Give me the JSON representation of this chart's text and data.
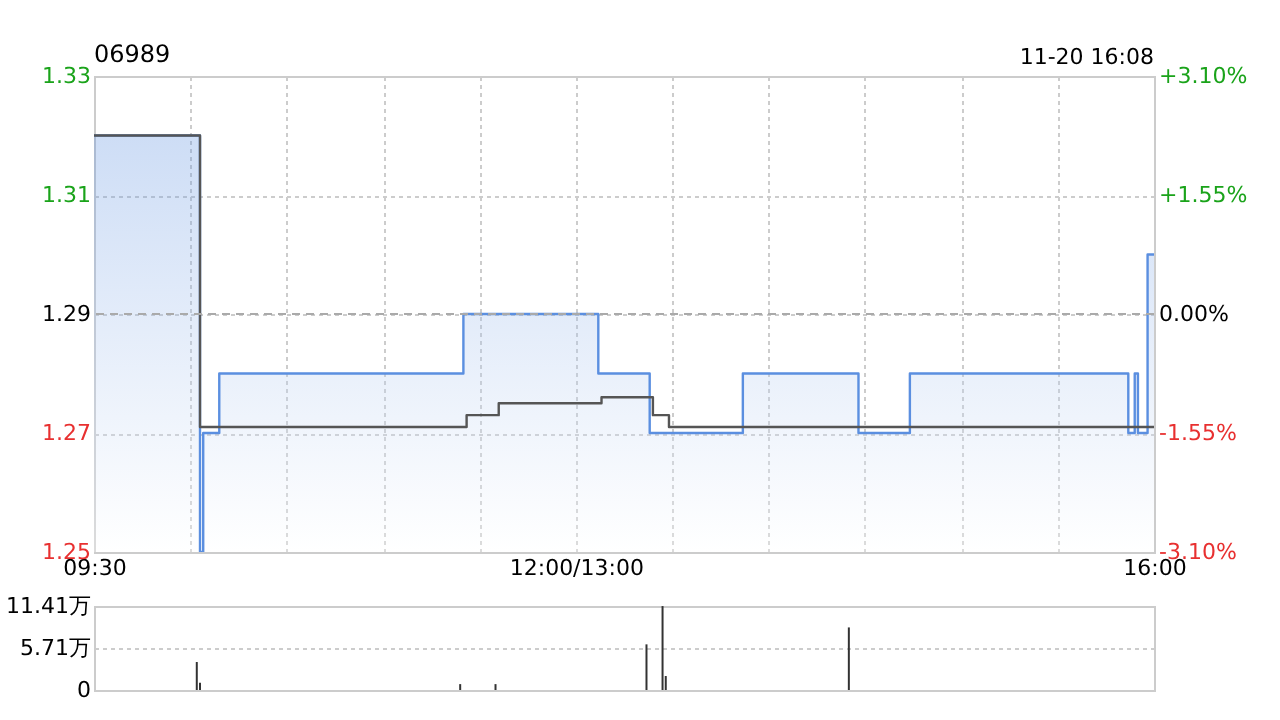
{
  "chart_data": [
    {
      "type": "area",
      "title": "06989",
      "annotations": [
        "11-20 16:08"
      ],
      "categories": [
        "09:30",
        null,
        null,
        null,
        null,
        null,
        null,
        null,
        null,
        null,
        null,
        null,
        null,
        null,
        null,
        null,
        null,
        null,
        null,
        null,
        null,
        null,
        null,
        null,
        null,
        null,
        null,
        null,
        null,
        null,
        null,
        null,
        null,
        null,
        null,
        null,
        null,
        null,
        null,
        null,
        null,
        null,
        null,
        null,
        null,
        null,
        null,
        null,
        null,
        null,
        null,
        null,
        null,
        null,
        null,
        null,
        null,
        null,
        null,
        null,
        null,
        null,
        null,
        null,
        null,
        null,
        null,
        null,
        null,
        null,
        null,
        null,
        null,
        null,
        null,
        null,
        null,
        null,
        null,
        null,
        null,
        null,
        null,
        null,
        null,
        null,
        null,
        null,
        null,
        null,
        null,
        null,
        null,
        null,
        null,
        null,
        null,
        null,
        null,
        null,
        null,
        null,
        null,
        null,
        null,
        null,
        null,
        null,
        null,
        null,
        null,
        null,
        null,
        null,
        null,
        null,
        null,
        null,
        null,
        null,
        null,
        null,
        null,
        null,
        null,
        null,
        null,
        null,
        null,
        null,
        null,
        null,
        null,
        null,
        null,
        null,
        null,
        null,
        null,
        null,
        null,
        null,
        null,
        null,
        null,
        null,
        null,
        null,
        null,
        null,
        "12:00/13:00",
        null,
        null,
        null,
        null,
        null,
        null,
        null,
        null,
        null,
        null,
        null,
        null,
        null,
        null,
        null,
        null,
        null,
        null,
        null,
        null,
        null,
        null,
        null,
        null,
        null,
        null,
        null,
        null,
        null,
        null,
        null,
        null,
        null,
        null,
        null,
        null,
        null,
        null,
        null,
        null,
        null,
        null,
        null,
        null,
        null,
        null,
        null,
        null,
        null,
        null,
        null,
        null,
        null,
        null,
        null,
        null,
        null,
        null,
        null,
        null,
        null,
        null,
        null,
        null,
        null,
        null,
        null,
        null,
        null,
        null,
        null,
        null,
        null,
        null,
        null,
        null,
        null,
        null,
        null,
        null,
        null,
        null,
        null,
        null,
        null,
        null,
        null,
        null,
        null,
        null,
        null,
        null,
        null,
        null,
        null,
        null,
        null,
        null,
        null,
        null,
        null,
        null,
        null,
        null,
        null,
        null,
        null,
        null,
        null,
        null,
        null,
        null,
        null,
        null,
        null,
        null,
        null,
        null,
        null,
        null,
        null,
        null,
        null,
        null,
        null,
        null,
        null,
        null,
        null,
        null,
        null,
        null,
        null,
        null,
        null,
        null,
        null,
        null,
        null,
        null,
        null,
        null,
        null,
        null,
        null,
        null,
        null,
        null,
        null,
        null,
        null,
        null,
        null,
        null,
        null,
        null,
        null,
        null,
        null,
        null,
        null,
        null,
        null,
        null,
        null,
        null,
        null,
        null,
        null,
        null,
        null,
        null,
        null,
        null,
        null,
        null,
        null,
        null,
        null,
        "16:00"
      ],
      "ylim": [
        1.25,
        1.33
      ],
      "yticks": [
        1.25,
        1.27,
        1.29,
        1.31,
        1.33
      ],
      "y2lim": [
        -3.1,
        3.1
      ],
      "y2ticks": [
        {
          "value": -3.1,
          "label": "-3.10%"
        },
        {
          "value": -1.55,
          "label": "-1.55%"
        },
        {
          "value": 0,
          "label": "0.00%"
        },
        {
          "value": 1.55,
          "label": "+1.55%"
        },
        {
          "value": 3.1,
          "label": "+3.10%"
        }
      ],
      "ref_lines": [
        {
          "axis": "y",
          "value": 1.29,
          "label": null,
          "color": "#aaaaaa",
          "line_style": "dashed"
        }
      ],
      "grid": true,
      "series": [
        {
          "type": "area",
          "color": "#5b8fe0",
          "values": [
            1.32,
            1.32,
            1.32,
            1.32,
            1.32,
            1.32,
            1.32,
            1.32,
            1.32,
            1.32,
            1.32,
            1.32,
            1.32,
            1.32,
            1.32,
            1.32,
            1.32,
            1.32,
            1.32,
            1.32,
            1.32,
            1.32,
            1.32,
            1.32,
            1.32,
            1.32,
            1.32,
            1.32,
            1.32,
            1.32,
            1.32,
            1.32,
            1.32,
            1.25,
            1.27,
            1.27,
            1.27,
            1.27,
            1.27,
            1.28,
            1.28,
            1.28,
            1.28,
            1.28,
            1.28,
            1.28,
            1.28,
            1.28,
            1.28,
            1.28,
            1.28,
            1.28,
            1.28,
            1.28,
            1.28,
            1.28,
            1.28,
            1.28,
            1.28,
            1.28,
            1.28,
            1.28,
            1.28,
            1.28,
            1.28,
            1.28,
            1.28,
            1.28,
            1.28,
            1.28,
            1.28,
            1.28,
            1.28,
            1.28,
            1.28,
            1.28,
            1.28,
            1.28,
            1.28,
            1.28,
            1.28,
            1.28,
            1.28,
            1.28,
            1.28,
            1.28,
            1.28,
            1.28,
            1.28,
            1.28,
            1.28,
            1.28,
            1.28,
            1.28,
            1.28,
            1.28,
            1.28,
            1.28,
            1.28,
            1.28,
            1.28,
            1.28,
            1.28,
            1.28,
            1.28,
            1.28,
            1.28,
            1.28,
            1.28,
            1.28,
            1.28,
            1.28,
            1.28,
            1.28,
            1.28,
            1.29,
            1.29,
            1.29,
            1.29,
            1.29,
            1.29,
            1.29,
            1.29,
            1.29,
            1.29,
            1.29,
            1.29,
            1.29,
            1.29,
            1.29,
            1.29,
            1.29,
            1.29,
            1.29,
            1.29,
            1.29,
            1.29,
            1.29,
            1.29,
            1.29,
            1.29,
            1.29,
            1.29,
            1.29,
            1.29,
            1.29,
            1.29,
            1.29,
            1.29,
            1.29,
            1.29,
            1.29,
            1.29,
            1.29,
            1.29,
            1.29,
            1.29,
            1.28,
            1.28,
            1.28,
            1.28,
            1.28,
            1.28,
            1.28,
            1.28,
            1.28,
            1.28,
            1.28,
            1.28,
            1.28,
            1.28,
            1.28,
            1.28,
            1.27,
            1.27,
            1.27,
            1.27,
            1.27,
            1.27,
            1.27,
            1.27,
            1.27,
            1.27,
            1.27,
            1.27,
            1.27,
            1.27,
            1.27,
            1.27,
            1.27,
            1.27,
            1.27,
            1.27,
            1.27,
            1.27,
            1.27,
            1.27,
            1.27,
            1.27,
            1.27,
            1.27,
            1.27,
            1.28,
            1.28,
            1.28,
            1.28,
            1.28,
            1.28,
            1.28,
            1.28,
            1.28,
            1.28,
            1.28,
            1.28,
            1.28,
            1.28,
            1.28,
            1.28,
            1.28,
            1.28,
            1.28,
            1.28,
            1.28,
            1.28,
            1.28,
            1.28,
            1.28,
            1.28,
            1.28,
            1.28,
            1.28,
            1.28,
            1.28,
            1.28,
            1.28,
            1.28,
            1.28,
            1.28,
            1.27,
            1.27,
            1.27,
            1.27,
            1.27,
            1.27,
            1.27,
            1.27,
            1.27,
            1.27,
            1.27,
            1.27,
            1.27,
            1.27,
            1.27,
            1.27,
            1.28,
            1.28,
            1.28,
            1.28,
            1.28,
            1.28,
            1.28,
            1.28,
            1.28,
            1.28,
            1.28,
            1.28,
            1.28,
            1.28,
            1.28,
            1.28,
            1.28,
            1.28,
            1.28,
            1.28,
            1.28,
            1.28,
            1.28,
            1.28,
            1.28,
            1.28,
            1.28,
            1.28,
            1.28,
            1.28,
            1.28,
            1.28,
            1.28,
            1.28,
            1.28,
            1.28,
            1.28,
            1.28,
            1.28,
            1.28,
            1.28,
            1.28,
            1.28,
            1.28,
            1.28,
            1.28,
            1.28,
            1.28,
            1.28,
            1.28,
            1.28,
            1.28,
            1.28,
            1.28,
            1.28,
            1.28,
            1.28,
            1.28,
            1.28,
            1.28,
            1.28,
            1.28,
            1.28,
            1.28,
            1.28,
            1.28,
            1.28,
            1.28,
            1.27,
            1.27,
            1.28,
            1.27,
            1.27,
            1.27,
            1.3,
            1.3,
            1.3
          ]
        },
        {
          "type": "step",
          "color": "#555555",
          "values": [
            1.32,
            1.32,
            1.32,
            1.32,
            1.32,
            1.32,
            1.32,
            1.32,
            1.32,
            1.32,
            1.32,
            1.32,
            1.32,
            1.32,
            1.32,
            1.32,
            1.32,
            1.32,
            1.32,
            1.32,
            1.32,
            1.32,
            1.32,
            1.32,
            1.32,
            1.32,
            1.32,
            1.32,
            1.32,
            1.32,
            1.32,
            1.32,
            1.32,
            1.271,
            1.271,
            1.271,
            1.271,
            1.271,
            1.271,
            1.271,
            1.271,
            1.271,
            1.271,
            1.271,
            1.271,
            1.271,
            1.271,
            1.271,
            1.271,
            1.271,
            1.271,
            1.271,
            1.271,
            1.271,
            1.271,
            1.271,
            1.271,
            1.271,
            1.271,
            1.271,
            1.271,
            1.271,
            1.271,
            1.271,
            1.271,
            1.271,
            1.271,
            1.271,
            1.271,
            1.271,
            1.271,
            1.271,
            1.271,
            1.271,
            1.271,
            1.271,
            1.271,
            1.271,
            1.271,
            1.271,
            1.271,
            1.271,
            1.271,
            1.271,
            1.271,
            1.271,
            1.271,
            1.271,
            1.271,
            1.271,
            1.271,
            1.271,
            1.271,
            1.271,
            1.271,
            1.271,
            1.271,
            1.271,
            1.271,
            1.271,
            1.271,
            1.271,
            1.271,
            1.271,
            1.271,
            1.271,
            1.271,
            1.271,
            1.271,
            1.271,
            1.271,
            1.271,
            1.271,
            1.271,
            1.271,
            1.271,
            1.273,
            1.273,
            1.273,
            1.273,
            1.273,
            1.273,
            1.273,
            1.273,
            1.273,
            1.273,
            1.275,
            1.275,
            1.275,
            1.275,
            1.275,
            1.275,
            1.275,
            1.275,
            1.275,
            1.275,
            1.275,
            1.275,
            1.275,
            1.275,
            1.275,
            1.275,
            1.275,
            1.275,
            1.275,
            1.275,
            1.275,
            1.275,
            1.275,
            1.275,
            1.275,
            1.275,
            1.275,
            1.275,
            1.275,
            1.275,
            1.275,
            1.275,
            1.276,
            1.276,
            1.276,
            1.276,
            1.276,
            1.276,
            1.276,
            1.276,
            1.276,
            1.276,
            1.276,
            1.276,
            1.276,
            1.276,
            1.276,
            1.276,
            1.273,
            1.273,
            1.273,
            1.273,
            1.273,
            1.271,
            1.271,
            1.271,
            1.271,
            1.271,
            1.271,
            1.271,
            1.271,
            1.271,
            1.271,
            1.271,
            1.271,
            1.271,
            1.271,
            1.271,
            1.271,
            1.271,
            1.271,
            1.271,
            1.271,
            1.271,
            1.271,
            1.271,
            1.271,
            1.271,
            1.271,
            1.271,
            1.271,
            1.271,
            1.271,
            1.271,
            1.271,
            1.271,
            1.271,
            1.271,
            1.271,
            1.271,
            1.271,
            1.271,
            1.271,
            1.271,
            1.271,
            1.271,
            1.271,
            1.271,
            1.271,
            1.271,
            1.271,
            1.271,
            1.271,
            1.271,
            1.271,
            1.271,
            1.271,
            1.271,
            1.271,
            1.271,
            1.271,
            1.271,
            1.271,
            1.271,
            1.271,
            1.271,
            1.271,
            1.271,
            1.271,
            1.271,
            1.271,
            1.271,
            1.271,
            1.271,
            1.271,
            1.271,
            1.271,
            1.271,
            1.271,
            1.271,
            1.271,
            1.271,
            1.271,
            1.271,
            1.271,
            1.271,
            1.271,
            1.271,
            1.271,
            1.271,
            1.271,
            1.271,
            1.271,
            1.271,
            1.271,
            1.271,
            1.271,
            1.271,
            1.271,
            1.271,
            1.271,
            1.271,
            1.271,
            1.271,
            1.271,
            1.271,
            1.271,
            1.271,
            1.271,
            1.271,
            1.271,
            1.271,
            1.271,
            1.271,
            1.271,
            1.271,
            1.271,
            1.271,
            1.271,
            1.271,
            1.271,
            1.271,
            1.271,
            1.271,
            1.271,
            1.271,
            1.271,
            1.271,
            1.271,
            1.271,
            1.271,
            1.271,
            1.271,
            1.271,
            1.271,
            1.271,
            1.271,
            1.271,
            1.271,
            1.271,
            1.271,
            1.271,
            1.271,
            1.271,
            1.271,
            1.271,
            1.271,
            1.271,
            1.271,
            1.271,
            1.271,
            1.271,
            1.271,
            1.271,
            1.271
          ]
        }
      ]
    },
    {
      "type": "bar",
      "tick_labels": "y",
      "categories": [
        null,
        null,
        null,
        null,
        null,
        null,
        null,
        null,
        null,
        null,
        null,
        null,
        null,
        null,
        null,
        null,
        null,
        null,
        null,
        null,
        null,
        null,
        null,
        null,
        null,
        null,
        null,
        null,
        null,
        null,
        null,
        null,
        null,
        null,
        null,
        null,
        null,
        null,
        null,
        null,
        null,
        null,
        null,
        null,
        null,
        null,
        null,
        null,
        null,
        null,
        null,
        null,
        null,
        null,
        null,
        null,
        null,
        null,
        null,
        null,
        null,
        null,
        null,
        null,
        null,
        null,
        null,
        null,
        null,
        null,
        null,
        null,
        null,
        null,
        null,
        null,
        null,
        null,
        null,
        null,
        null,
        null,
        null,
        null,
        null,
        null,
        null,
        null,
        null,
        null,
        null,
        null,
        null,
        null,
        null,
        null,
        null,
        null,
        null,
        null,
        null,
        null,
        null,
        null,
        null,
        null,
        null,
        null,
        null,
        null,
        null,
        null,
        null,
        null,
        null,
        null,
        null,
        null,
        null,
        null,
        null,
        null,
        null,
        null,
        null,
        null,
        null,
        null,
        null,
        null,
        null,
        null,
        null,
        null,
        null,
        null,
        null,
        null,
        null,
        null,
        null,
        null,
        null,
        null,
        null,
        null,
        null,
        null,
        null,
        null,
        null,
        null,
        null,
        null,
        null,
        null,
        null,
        null,
        null,
        null,
        null,
        null,
        null,
        null,
        null,
        null,
        null,
        null,
        null,
        null,
        null,
        null,
        null,
        null,
        null,
        null,
        null,
        null,
        null,
        null,
        null,
        null,
        null,
        null,
        null,
        null,
        null,
        null,
        null,
        null,
        null,
        null,
        null,
        null,
        null,
        null,
        null,
        null,
        null,
        null,
        null,
        null,
        null,
        null,
        null,
        null,
        null,
        null,
        null,
        null,
        null,
        null,
        null,
        null,
        null,
        null,
        null,
        null,
        null,
        null,
        null,
        null,
        null,
        null,
        null,
        null,
        null,
        null,
        null,
        null,
        null,
        null,
        null,
        null,
        null,
        null,
        null,
        null,
        null,
        null,
        null,
        null,
        null,
        null,
        null,
        null,
        null,
        null,
        null,
        null,
        null,
        null,
        null,
        null,
        null,
        null,
        null,
        null,
        null,
        null,
        null,
        null,
        null,
        null,
        null,
        null,
        null,
        null,
        null,
        null,
        null,
        null,
        null,
        null,
        null,
        null,
        null,
        null,
        null,
        null,
        null,
        null,
        null,
        null,
        null,
        null,
        null,
        null,
        null,
        null,
        null,
        null,
        null,
        null,
        null,
        null,
        null,
        null,
        null,
        null,
        null,
        null,
        null,
        null,
        null,
        null,
        null,
        null,
        null,
        null,
        null,
        null,
        null,
        null,
        null,
        null,
        null,
        null,
        null,
        null,
        null,
        null,
        null,
        null,
        null,
        null,
        null,
        null,
        null,
        null,
        null
      ],
      "ylim": [
        0,
        11.41
      ],
      "yticks": [
        0,
        {
          "value": 5.71,
          "label": "5.71万"
        },
        {
          "value": 11.41,
          "label": "11.41万"
        }
      ],
      "grid": "y",
      "series": [
        {
          "color": "#333333",
          "values": [
            null,
            null,
            null,
            null,
            null,
            null,
            null,
            null,
            null,
            null,
            null,
            null,
            null,
            null,
            null,
            null,
            null,
            null,
            null,
            null,
            null,
            null,
            null,
            null,
            null,
            null,
            null,
            null,
            null,
            null,
            null,
            null,
            3.8,
            1.0,
            null,
            null,
            null,
            null,
            null,
            null,
            null,
            null,
            null,
            null,
            null,
            null,
            null,
            null,
            null,
            null,
            null,
            null,
            null,
            null,
            null,
            null,
            null,
            null,
            null,
            null,
            null,
            null,
            null,
            null,
            null,
            null,
            null,
            null,
            null,
            null,
            null,
            null,
            null,
            null,
            null,
            null,
            null,
            null,
            null,
            null,
            null,
            null,
            null,
            null,
            null,
            null,
            null,
            null,
            null,
            null,
            null,
            null,
            null,
            null,
            null,
            null,
            null,
            null,
            null,
            null,
            null,
            null,
            null,
            null,
            null,
            null,
            null,
            null,
            null,
            null,
            null,
            null,
            null,
            null,
            0.8,
            null,
            null,
            null,
            null,
            null,
            null,
            null,
            null,
            null,
            null,
            0.8,
            null,
            null,
            null,
            null,
            null,
            null,
            null,
            null,
            null,
            null,
            null,
            null,
            null,
            null,
            null,
            null,
            null,
            null,
            null,
            null,
            null,
            null,
            null,
            null,
            null,
            null,
            null,
            null,
            null,
            null,
            null,
            null,
            null,
            null,
            null,
            null,
            null,
            null,
            null,
            null,
            null,
            null,
            null,
            null,
            null,
            null,
            6.2,
            null,
            null,
            null,
            null,
            11.4,
            1.9,
            null,
            null,
            null,
            null,
            null,
            null,
            null,
            null,
            null,
            null,
            null,
            null,
            null,
            null,
            null,
            null,
            null,
            null,
            null,
            null,
            null,
            null,
            null,
            null,
            null,
            null,
            null,
            null,
            null,
            null,
            null,
            null,
            null,
            null,
            null,
            null,
            null,
            null,
            null,
            null,
            null,
            null,
            null,
            null,
            null,
            null,
            null,
            null,
            null,
            null,
            null,
            null,
            null,
            null,
            null,
            null,
            8.5,
            null,
            null,
            null,
            null,
            null,
            null,
            null,
            null,
            null,
            null,
            null,
            null,
            null,
            null,
            null,
            null,
            null,
            null,
            null,
            null,
            null,
            null,
            null,
            null,
            null,
            null,
            null,
            null,
            null,
            null,
            null,
            null,
            null,
            null,
            null,
            null,
            null,
            null,
            null,
            null,
            null,
            null,
            null,
            null,
            null,
            null,
            null,
            null,
            null,
            null,
            null,
            null,
            null,
            null,
            null,
            null,
            null,
            null,
            null,
            null,
            null,
            null,
            null,
            null,
            null,
            null,
            null,
            null,
            null,
            null,
            null,
            null,
            null,
            null,
            null,
            null,
            null,
            null,
            null,
            null,
            null,
            null,
            null,
            null,
            null,
            null,
            null,
            null,
            null,
            null,
            null,
            null,
            null,
            null,
            null
          ]
        }
      ]
    }
  ]
}
